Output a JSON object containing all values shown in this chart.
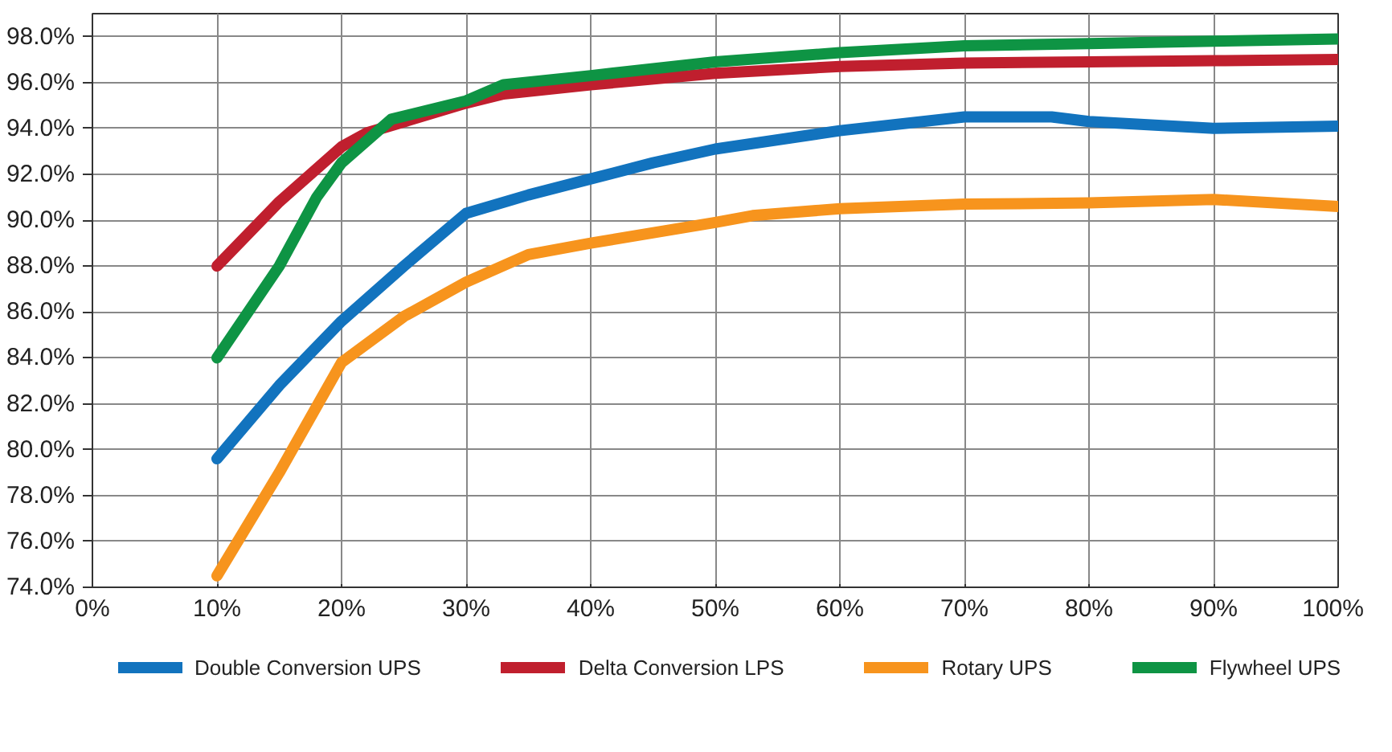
{
  "chart_data": {
    "type": "line",
    "xlim": [
      0,
      100
    ],
    "ylim": [
      74,
      99
    ],
    "xticks": [
      {
        "value": 0,
        "label": "0%"
      },
      {
        "value": 10,
        "label": "10%"
      },
      {
        "value": 20,
        "label": "20%"
      },
      {
        "value": 30,
        "label": "30%"
      },
      {
        "value": 40,
        "label": "40%"
      },
      {
        "value": 50,
        "label": "50%"
      },
      {
        "value": 60,
        "label": "60%"
      },
      {
        "value": 70,
        "label": "70%"
      },
      {
        "value": 80,
        "label": "80%"
      },
      {
        "value": 90,
        "label": "90%"
      },
      {
        "value": 100,
        "label": "100%"
      }
    ],
    "yticks": [
      {
        "value": 74,
        "label": "74.0%"
      },
      {
        "value": 76,
        "label": "76.0%"
      },
      {
        "value": 78,
        "label": "78.0%"
      },
      {
        "value": 80,
        "label": "80.0%"
      },
      {
        "value": 82,
        "label": "82.0%"
      },
      {
        "value": 84,
        "label": "84.0%"
      },
      {
        "value": 86,
        "label": "86.0%"
      },
      {
        "value": 88,
        "label": "88.0%"
      },
      {
        "value": 90,
        "label": "90.0%"
      },
      {
        "value": 92,
        "label": "92.0%"
      },
      {
        "value": 94,
        "label": "94.0%"
      },
      {
        "value": 96,
        "label": "96.0%"
      },
      {
        "value": 98,
        "label": "98.0%"
      }
    ],
    "grid": true,
    "legend": "bottom",
    "marker": "none",
    "line_style": "solid",
    "series": [
      {
        "name": "Double Conversion UPS",
        "color": "#1273be",
        "x": [
          10,
          15,
          20,
          25,
          30,
          35,
          40,
          45,
          50,
          60,
          70,
          77,
          80,
          90,
          100
        ],
        "values": [
          79.6,
          82.8,
          85.6,
          88.0,
          90.3,
          91.1,
          91.8,
          92.5,
          93.1,
          93.9,
          94.5,
          94.5,
          94.3,
          94.0,
          94.1
        ]
      },
      {
        "name": "Delta Conversion LPS",
        "color": "#c01f2e",
        "x": [
          10,
          15,
          20,
          22,
          30,
          33,
          40,
          50,
          60,
          70,
          80,
          90,
          100
        ],
        "values": [
          88.0,
          90.8,
          93.2,
          93.8,
          95.1,
          95.5,
          95.9,
          96.4,
          96.7,
          96.85,
          96.9,
          96.95,
          97.0
        ]
      },
      {
        "name": "Rotary UPS",
        "color": "#f7941d",
        "x": [
          10,
          15,
          20,
          25,
          30,
          35,
          40,
          50,
          53,
          60,
          70,
          80,
          90,
          100
        ],
        "values": [
          74.5,
          79.0,
          83.8,
          85.8,
          87.3,
          88.5,
          89.0,
          89.9,
          90.2,
          90.5,
          90.7,
          90.75,
          90.9,
          90.6
        ]
      },
      {
        "name": "Flywheel UPS",
        "color": "#0e9444",
        "x": [
          10,
          15,
          18,
          20,
          24,
          30,
          33,
          40,
          50,
          60,
          70,
          80,
          90,
          100
        ],
        "values": [
          84.0,
          88.0,
          91.0,
          92.5,
          94.4,
          95.2,
          95.9,
          96.3,
          96.9,
          97.3,
          97.6,
          97.7,
          97.8,
          97.9
        ]
      }
    ]
  }
}
